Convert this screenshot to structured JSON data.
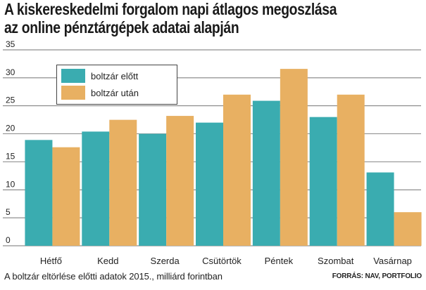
{
  "title_line1": "A kiskereskedelmi forgalom napi átlagos megoszlása",
  "title_line2": "az online pénztárgépek adatai alapján",
  "footnote": "A boltzár eltörlése előtti adatok 2015., milliárd forintban",
  "source": "FORRÁS: NAV, PORTFOLIO",
  "colors": {
    "before": "#3aacb0",
    "after": "#e8b062",
    "grid": "#444444"
  },
  "chart_data": {
    "type": "bar",
    "title": "A kiskereskedelmi forgalom napi átlagos megoszlása az online pénztárgépek adatai alapján",
    "categories": [
      "Hétfő",
      "Kedd",
      "Szerda",
      "Csütörtök",
      "Péntek",
      "Szombat",
      "Vasárnap"
    ],
    "series": [
      {
        "name": "boltzár előtt",
        "values": [
          18.9,
          20.4,
          20.0,
          22.0,
          25.9,
          23.0,
          13.1
        ]
      },
      {
        "name": "boltzár után",
        "values": [
          17.6,
          22.5,
          23.2,
          27.0,
          31.6,
          27.0,
          6.0
        ]
      }
    ],
    "ylim": [
      0,
      35
    ],
    "yticks": [
      0,
      5,
      10,
      15,
      20,
      25,
      30,
      35
    ],
    "grid": true,
    "legend": "top-left"
  }
}
